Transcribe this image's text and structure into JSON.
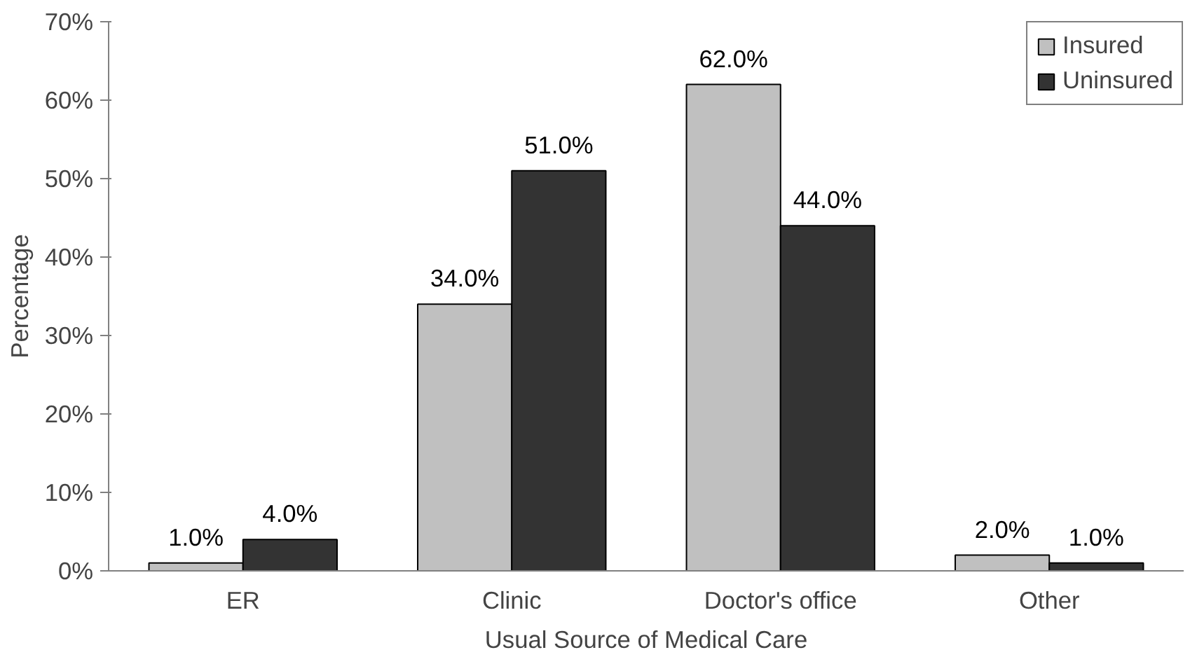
{
  "chart_data": {
    "type": "bar",
    "xlabel": "Usual Source of Medical Care",
    "ylabel": "Percentage",
    "categories": [
      "ER",
      "Clinic",
      "Doctor's office",
      "Other"
    ],
    "series": [
      {
        "name": "Insured",
        "color": "#c0c0c0",
        "values": [
          1,
          34,
          62,
          2
        ],
        "value_labels": [
          "1.0%",
          "34.0%",
          "62.0%",
          "2.0%"
        ]
      },
      {
        "name": "Uninsured",
        "color": "#333333",
        "values": [
          4,
          51,
          44,
          1
        ],
        "value_labels": [
          "4.0%",
          "51.0%",
          "44.0%",
          "1.0%"
        ]
      }
    ],
    "ylim": [
      0,
      70
    ],
    "yticks": [
      {
        "value": 0,
        "label": "0%"
      },
      {
        "value": 10,
        "label": "10%"
      },
      {
        "value": 20,
        "label": "20%"
      },
      {
        "value": 30,
        "label": "30%"
      },
      {
        "value": 40,
        "label": "40%"
      },
      {
        "value": 50,
        "label": "50%"
      },
      {
        "value": 60,
        "label": "60%"
      },
      {
        "value": 70,
        "label": "70%"
      }
    ],
    "grid": false,
    "legend": "top right"
  }
}
